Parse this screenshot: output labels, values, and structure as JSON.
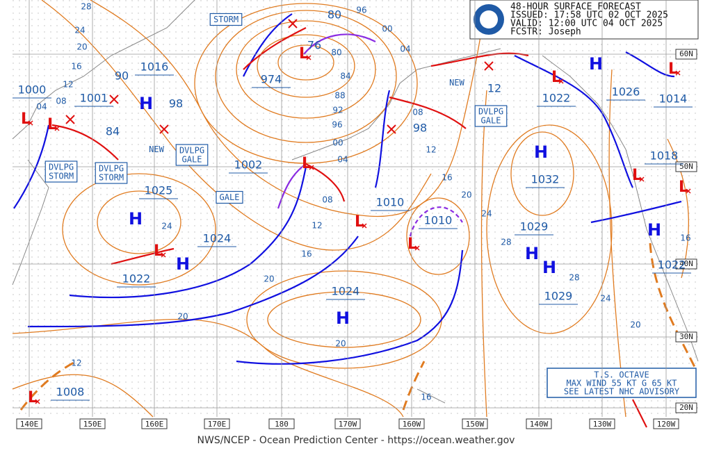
{
  "header": {
    "lines": [
      "48-HOUR SURFACE FORECAST",
      "ISSUED: 17:58 UTC 02 OCT 2025",
      "VALID:  12:00 UTC 04 OCT 2025",
      "FCSTR:  Joseph"
    ]
  },
  "footer": "NWS/NCEP - Ocean Prediction Center - https://ocean.weather.gov",
  "lon_labels": [
    "140E",
    "150E",
    "160E",
    "170E",
    "180",
    "170W",
    "160W",
    "150W",
    "140W",
    "130W",
    "120W"
  ],
  "lat_labels": [
    "60N",
    "50N",
    "40N",
    "30N",
    "20N"
  ],
  "symbols": {
    "high": "H",
    "low": "L"
  },
  "center_values": [
    1000,
    1001,
    90,
    1016,
    98,
    84,
    974,
    1002,
    1025,
    1024,
    1022,
    1024,
    1010,
    1010,
    98,
    12,
    1022,
    1026,
    1014,
    1018,
    1032,
    1029,
    1029,
    1022,
    1008,
    80,
    76
  ],
  "isobar_labels": [
    "28",
    "24",
    "20",
    "16",
    "12",
    "08",
    "04",
    "80",
    "84",
    "88",
    "92",
    "96",
    "00",
    "04",
    "08",
    "12",
    "16",
    "20",
    "20",
    "20",
    "24",
    "24",
    "28",
    "28",
    "24",
    "20",
    "16",
    "12",
    "08",
    "20",
    "16",
    "12",
    "16",
    "96",
    "00",
    "04"
  ],
  "warnings": [
    [
      "STORM"
    ],
    [
      "DVLPG",
      "STORM"
    ],
    [
      "DVLPG",
      "STORM"
    ],
    [
      "DVLPG",
      "GALE"
    ],
    [
      "GALE"
    ],
    [
      "DVLPG",
      "GALE"
    ],
    [
      "NEW"
    ],
    [
      "NEW"
    ]
  ],
  "advisory": [
    "T.S. OCTAVE",
    "MAX WIND 55 KT G 65 KT",
    "SEE LATEST NHC ADVISORY"
  ]
}
